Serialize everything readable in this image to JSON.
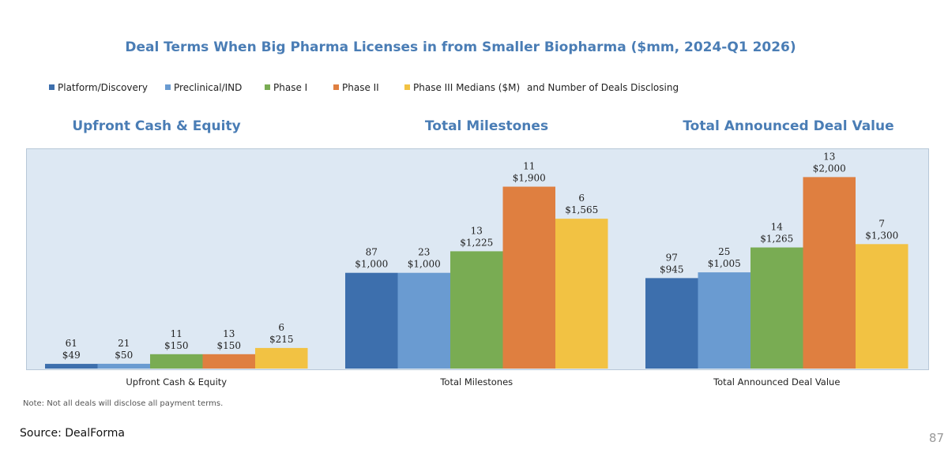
{
  "title": "Deal Terms When Big Pharma Licenses in from Smaller Biopharma ($mm, 2024-Q1 2026)",
  "legend": {
    "items": [
      {
        "label": "Platform/Discovery",
        "color": "#3d6fad"
      },
      {
        "label": "Preclinical/IND",
        "color": "#6a9bd1"
      },
      {
        "label": "Phase I",
        "color": "#79ac53"
      },
      {
        "label": "Phase II",
        "color": "#df7f40"
      },
      {
        "label": "Phase III Medians ($M)",
        "color": "#f2c243"
      }
    ],
    "extra": "and Number of Deals Disclosing"
  },
  "panel_titles": [
    "Upfront Cash & Equity",
    "Total Milestones",
    "Total Announced Deal Value"
  ],
  "note": "Note: Not all deals will disclose all payment terms.",
  "source": "Source: DealForma",
  "page_number": "87",
  "chart_data": {
    "type": "bar",
    "categories": [
      "Upfront Cash & Equity",
      "Total Milestones",
      "Total Announced Deal Value"
    ],
    "ylim": [
      0,
      2300
    ],
    "grid": false,
    "legend_position": "top",
    "series": [
      {
        "name": "Platform/Discovery",
        "color": "#3d6fad",
        "values": [
          49,
          1000,
          945
        ],
        "labels": [
          "$49",
          "$1,000",
          "$945"
        ],
        "deals": [
          61,
          87,
          97
        ]
      },
      {
        "name": "Preclinical/IND",
        "color": "#6a9bd1",
        "values": [
          50,
          1000,
          1005
        ],
        "labels": [
          "$50",
          "$1,000",
          "$1,005"
        ],
        "deals": [
          21,
          23,
          25
        ]
      },
      {
        "name": "Phase I",
        "color": "#79ac53",
        "values": [
          150,
          1225,
          1265
        ],
        "labels": [
          "$150",
          "$1,225",
          "$1,265"
        ],
        "deals": [
          11,
          13,
          14
        ]
      },
      {
        "name": "Phase II",
        "color": "#df7f40",
        "values": [
          150,
          1900,
          2000
        ],
        "labels": [
          "$150",
          "$1,900",
          "$2,000"
        ],
        "deals": [
          13,
          11,
          13
        ]
      },
      {
        "name": "Phase III Medians ($M)",
        "color": "#f2c243",
        "values": [
          215,
          1565,
          1300
        ],
        "labels": [
          "$215",
          "$1,565",
          "$1,300"
        ],
        "deals": [
          6,
          6,
          7
        ]
      }
    ]
  }
}
